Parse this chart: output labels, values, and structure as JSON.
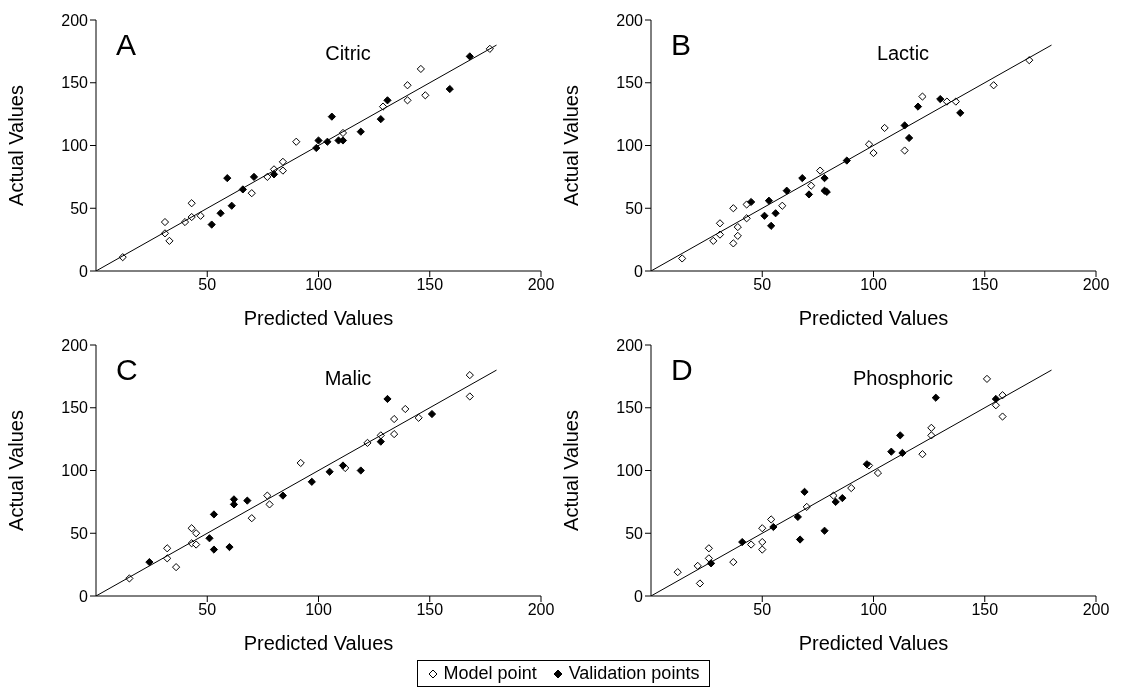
{
  "chart_data": [
    {
      "type": "scatter",
      "title": "Citric",
      "annotations": [
        "A"
      ],
      "xlabel": "Predicted Values",
      "ylabel": "Actual Values",
      "xlim": [
        0,
        200
      ],
      "xticks": [
        50,
        100,
        150,
        200
      ],
      "ylim": [
        0,
        200
      ],
      "yticks": [
        0,
        50,
        100,
        150,
        200
      ],
      "grid": false,
      "legend": "bottom",
      "marker": "diamond",
      "series": [
        {
          "name": "Model point",
          "color": "#ffffff",
          "x": [
            12,
            31,
            31,
            33,
            40,
            43,
            43,
            47,
            70,
            77,
            80,
            84,
            84,
            90,
            111,
            129,
            140,
            140,
            146,
            148,
            177
          ],
          "values": [
            11,
            39,
            30,
            24,
            39,
            54,
            43,
            44,
            62,
            75,
            81,
            80,
            87,
            103,
            110,
            131,
            148,
            136,
            161,
            140,
            177
          ]
        },
        {
          "name": "Validation points",
          "color": "#000000",
          "x": [
            52,
            56,
            59,
            61,
            66,
            71,
            80,
            99,
            100,
            104,
            106,
            109,
            111,
            119,
            128,
            131,
            159,
            168
          ],
          "values": [
            37,
            46,
            74,
            52,
            65,
            75,
            77,
            98,
            104,
            103,
            123,
            104,
            104,
            111,
            121,
            136,
            145,
            171
          ]
        },
        {
          "type": "line",
          "color": "#000000",
          "marker": "none",
          "x": [
            0,
            180
          ],
          "values": [
            0,
            180
          ]
        }
      ]
    },
    {
      "type": "scatter",
      "title": "Lactic",
      "annotations": [
        "B"
      ],
      "xlabel": "Predicted Values",
      "ylabel": "Actual Values",
      "xlim": [
        0,
        200
      ],
      "xticks": [
        50,
        100,
        150,
        200
      ],
      "ylim": [
        0,
        200
      ],
      "yticks": [
        0,
        50,
        100,
        150,
        200
      ],
      "grid": false,
      "marker": "diamond",
      "series": [
        {
          "color": "#ffffff",
          "x": [
            14,
            28,
            31,
            31,
            37,
            37,
            39,
            39,
            43,
            43,
            59,
            72,
            76,
            98,
            100,
            105,
            114,
            122,
            133,
            137,
            154,
            170
          ],
          "values": [
            10,
            24,
            29,
            38,
            50,
            22,
            28,
            35,
            53,
            42,
            52,
            68,
            80,
            101,
            94,
            114,
            96,
            139,
            135,
            135,
            148,
            168
          ]
        },
        {
          "color": "#000000",
          "x": [
            45,
            51,
            53,
            54,
            56,
            61,
            68,
            71,
            78,
            78,
            79,
            88,
            114,
            116,
            120,
            130,
            139
          ],
          "values": [
            55,
            44,
            56,
            36,
            46,
            64,
            74,
            61,
            64,
            74,
            63,
            88,
            116,
            106,
            131,
            137,
            126
          ]
        },
        {
          "type": "line",
          "color": "#000000",
          "marker": "none",
          "x": [
            0,
            180
          ],
          "values": [
            0,
            180
          ]
        }
      ]
    },
    {
      "type": "scatter",
      "title": "Malic",
      "annotations": [
        "C"
      ],
      "xlabel": "Predicted Values",
      "ylabel": "Actual Values",
      "xlim": [
        0,
        200
      ],
      "xticks": [
        50,
        100,
        150,
        200
      ],
      "ylim": [
        0,
        200
      ],
      "yticks": [
        0,
        50,
        100,
        150,
        200
      ],
      "grid": false,
      "marker": "diamond",
      "series": [
        {
          "color": "#ffffff",
          "x": [
            15,
            32,
            32,
            36,
            43,
            43,
            45,
            45,
            70,
            77,
            78,
            92,
            112,
            122,
            128,
            134,
            134,
            139,
            145,
            168,
            168
          ],
          "values": [
            14,
            38,
            30,
            23,
            54,
            42,
            50,
            41,
            62,
            80,
            73,
            106,
            102,
            122,
            128,
            141,
            129,
            149,
            142,
            176,
            159
          ]
        },
        {
          "color": "#000000",
          "x": [
            24,
            51,
            53,
            53,
            60,
            62,
            62,
            68,
            84,
            97,
            105,
            111,
            119,
            128,
            131,
            151
          ],
          "values": [
            27,
            46,
            65,
            37,
            39,
            77,
            73,
            76,
            80,
            91,
            99,
            104,
            100,
            123,
            157,
            145
          ]
        },
        {
          "type": "line",
          "color": "#000000",
          "marker": "none",
          "x": [
            0,
            180
          ],
          "values": [
            0,
            180
          ]
        }
      ]
    },
    {
      "type": "scatter",
      "title": "Phosphoric",
      "annotations": [
        "D"
      ],
      "xlabel": "Predicted Values",
      "ylabel": "Actual Values",
      "xlim": [
        0,
        200
      ],
      "xticks": [
        50,
        100,
        150,
        200
      ],
      "ylim": [
        0,
        200
      ],
      "yticks": [
        0,
        50,
        100,
        150,
        200
      ],
      "grid": false,
      "marker": "diamond",
      "series": [
        {
          "color": "#ffffff",
          "x": [
            12,
            21,
            22,
            26,
            26,
            37,
            45,
            50,
            50,
            50,
            54,
            70,
            82,
            90,
            98,
            102,
            122,
            126,
            126,
            151,
            155,
            158,
            158
          ],
          "values": [
            19,
            24,
            10,
            38,
            30,
            27,
            41,
            54,
            43,
            37,
            61,
            71,
            80,
            86,
            104,
            98,
            113,
            134,
            128,
            173,
            152,
            160,
            143
          ]
        },
        {
          "color": "#000000",
          "x": [
            27,
            41,
            55,
            66,
            67,
            69,
            78,
            83,
            86,
            97,
            108,
            112,
            113,
            128,
            155
          ],
          "values": [
            26,
            43,
            55,
            63,
            45,
            83,
            52,
            75,
            78,
            105,
            115,
            128,
            114,
            158,
            157
          ]
        },
        {
          "type": "line",
          "color": "#000000",
          "marker": "none",
          "x": [
            0,
            180
          ],
          "values": [
            0,
            180
          ]
        }
      ]
    }
  ]
}
